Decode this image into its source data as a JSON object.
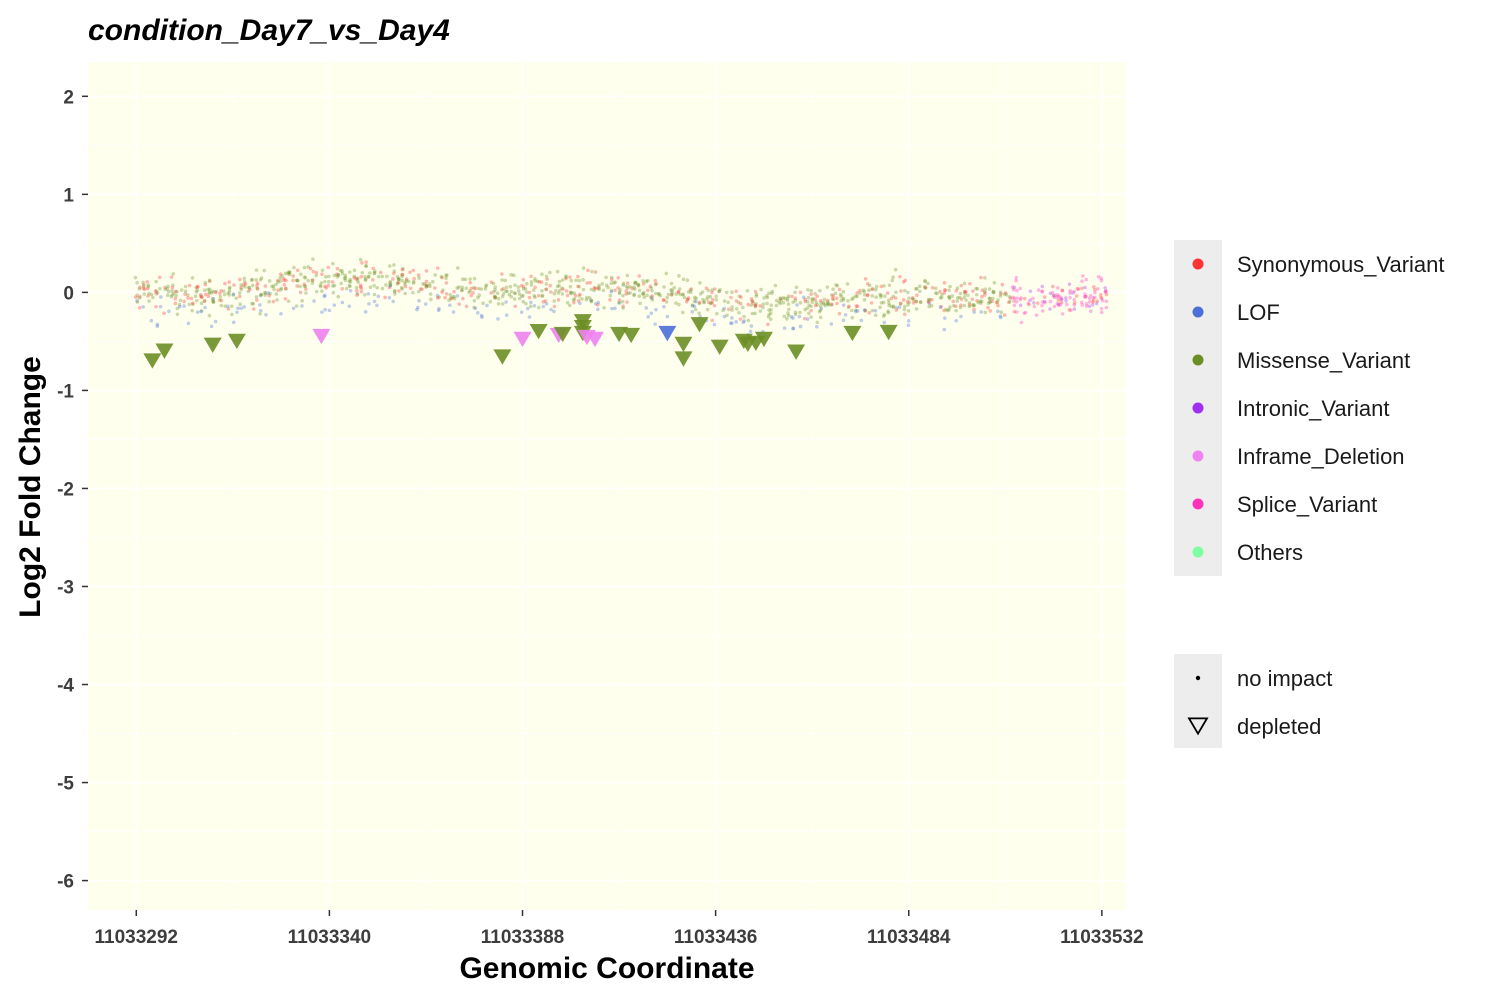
{
  "chart_data": {
    "type": "scatter",
    "title": "condition_Day7_vs_Day4",
    "xlabel": "Genomic Coordinate",
    "ylabel": "Log2 Fold Change",
    "xlim": [
      11033280,
      11033538
    ],
    "ylim": [
      -6.3,
      2.35
    ],
    "x_ticks": [
      11033292,
      11033340,
      11033388,
      11033436,
      11033484,
      11033532
    ],
    "x_tick_labels": [
      "11033292",
      "11033340",
      "11033388",
      "11033436",
      "11033484",
      "11033532"
    ],
    "y_ticks": [
      2,
      1,
      0,
      -1,
      -2,
      -3,
      -4,
      -5,
      -6
    ],
    "y_tick_labels": [
      "2",
      "1",
      "0",
      "-1",
      "-2",
      "-3",
      "-4",
      "-5",
      "-6"
    ],
    "grid": true,
    "panel_background": "#ffffee",
    "grid_color": "#ffffff",
    "legend_position": "right",
    "series": [
      {
        "name": "Synonymous_Variant",
        "color": "#ff3333"
      },
      {
        "name": "LOF",
        "color": "#4a6fd8"
      },
      {
        "name": "Missense_Variant",
        "color": "#6b8e23"
      },
      {
        "name": "Intronic_Variant",
        "color": "#a030f0"
      },
      {
        "name": "Inframe_Deletion",
        "color": "#ee82ee"
      },
      {
        "name": "Splice_Variant",
        "color": "#ff33bb"
      },
      {
        "name": "Others",
        "color": "#7fffa0"
      }
    ],
    "shape_legend": [
      {
        "name": "no impact",
        "shape": "dot"
      },
      {
        "name": "depleted",
        "shape": "triangle-down"
      }
    ],
    "depleted_points": [
      {
        "x": 11033296,
        "y": -0.7,
        "series": "Missense_Variant"
      },
      {
        "x": 11033299,
        "y": -0.6,
        "series": "Missense_Variant"
      },
      {
        "x": 11033311,
        "y": -0.54,
        "series": "Missense_Variant"
      },
      {
        "x": 11033317,
        "y": -0.5,
        "series": "Missense_Variant"
      },
      {
        "x": 11033338,
        "y": -0.45,
        "series": "Inframe_Deletion"
      },
      {
        "x": 11033383,
        "y": -0.66,
        "series": "Missense_Variant"
      },
      {
        "x": 11033388,
        "y": -0.48,
        "series": "Inframe_Deletion"
      },
      {
        "x": 11033392,
        "y": -0.4,
        "series": "Missense_Variant"
      },
      {
        "x": 11033397,
        "y": -0.44,
        "series": "Inframe_Deletion"
      },
      {
        "x": 11033398,
        "y": -0.43,
        "series": "Missense_Variant"
      },
      {
        "x": 11033403,
        "y": -0.3,
        "series": "Missense_Variant"
      },
      {
        "x": 11033403,
        "y": -0.36,
        "series": "Missense_Variant"
      },
      {
        "x": 11033403,
        "y": -0.42,
        "series": "Missense_Variant"
      },
      {
        "x": 11033404,
        "y": -0.46,
        "series": "Inframe_Deletion"
      },
      {
        "x": 11033406,
        "y": -0.48,
        "series": "Inframe_Deletion"
      },
      {
        "x": 11033412,
        "y": -0.43,
        "series": "Missense_Variant"
      },
      {
        "x": 11033415,
        "y": -0.44,
        "series": "Missense_Variant"
      },
      {
        "x": 11033424,
        "y": -0.42,
        "series": "LOF"
      },
      {
        "x": 11033428,
        "y": -0.53,
        "series": "Missense_Variant"
      },
      {
        "x": 11033428,
        "y": -0.68,
        "series": "Missense_Variant"
      },
      {
        "x": 11033432,
        "y": -0.33,
        "series": "Missense_Variant"
      },
      {
        "x": 11033437,
        "y": -0.56,
        "series": "Missense_Variant"
      },
      {
        "x": 11033443,
        "y": -0.5,
        "series": "Missense_Variant"
      },
      {
        "x": 11033444,
        "y": -0.53,
        "series": "Missense_Variant"
      },
      {
        "x": 11033446,
        "y": -0.52,
        "series": "Missense_Variant"
      },
      {
        "x": 11033448,
        "y": -0.48,
        "series": "Missense_Variant"
      },
      {
        "x": 11033456,
        "y": -0.61,
        "series": "Missense_Variant"
      },
      {
        "x": 11033470,
        "y": -0.42,
        "series": "Missense_Variant"
      },
      {
        "x": 11033479,
        "y": -0.41,
        "series": "Missense_Variant"
      }
    ],
    "no_impact_points": {
      "x_range": [
        11033292,
        11033533
      ],
      "y_range": [
        -0.7,
        0.55
      ],
      "description_level": "dense band near zero; mostly Missense_Variant with Synonymous_Variant and LOF interspersed, Splice_Variant and Intronic_Variant at the right end"
    }
  }
}
